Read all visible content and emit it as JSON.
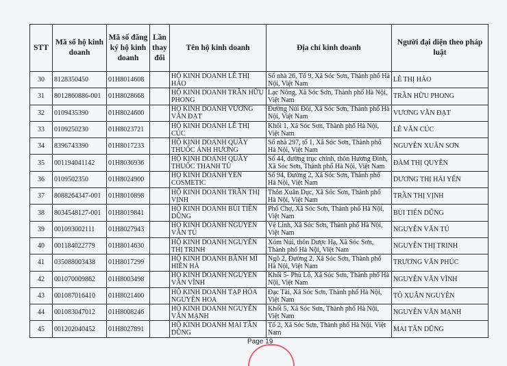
{
  "headers": [
    "STT",
    "Mã số hộ kinh doanh",
    "Mã số đăng ký hộ kinh doanh",
    "Lần thay đổi",
    "Tên hộ kinh doanh",
    "Địa chỉ kinh doanh",
    "Người đại diện theo pháp luật"
  ],
  "rows": [
    {
      "stt": "30",
      "ma_so": "8128350450",
      "ma_dk": "01H8014608",
      "lan": "",
      "ten": "HỘ KINH DOANH LÊ THỊ HẢO",
      "dia_chi": "Số nhà 26, Tổ 9, Xã Sóc Sơn, Thành phố Hà Nội, Việt Nam",
      "dai_dien": "LÊ THỊ HẢO"
    },
    {
      "stt": "31",
      "ma_so": "8012860886-001",
      "ma_dk": "01H8028668",
      "lan": "",
      "ten": "HỘ KINH DOANH TRẦN HỮU PHONG",
      "dia_chi": "Lạc Nông, Xã Sóc Sơn, Thành phố Hà Nội, Việt Nam",
      "dai_dien": "TRẦN HỮU PHONG"
    },
    {
      "stt": "32",
      "ma_so": "0109435390",
      "ma_dk": "01H8024600",
      "lan": "",
      "ten": "HỘ KINH DOANH VƯƠNG VĂN ĐẠT",
      "dia_chi": "Đường Núi Đôi, Xã Sóc Sơn, Thành phố Hà Nội, Việt Nam",
      "dai_dien": "VƯƠNG VĂN ĐẠT"
    },
    {
      "stt": "33",
      "ma_so": "0109250230",
      "ma_dk": "01H8023721",
      "lan": "",
      "ten": "HỘ KINH DOANH LÊ THỊ CÚC",
      "dia_chi": "Khối 1, Xã Sóc Sơn, Thành phố Hà Nội, Việt Nam",
      "dai_dien": "LÊ VĂN CÚC"
    },
    {
      "stt": "34",
      "ma_so": "8396743390",
      "ma_dk": "01H8017233",
      "lan": "",
      "ten": "HỘ KINH DOANH QUẦY THUỐC ÁNH HƯƠNG",
      "dia_chi": "Số nhà 297, tổ 1, Xã Sóc Sơn, Thành phố Hà Nội, Việt Nam",
      "dai_dien": "NGUYỄN XUÂN SƠN"
    },
    {
      "stt": "35",
      "ma_so": "001194041142",
      "ma_dk": "01H8036936",
      "lan": "",
      "ten": "HỘ KINH DOANH QUẦY THUỐC THANH TÚ",
      "dia_chi": "Số 44, đường trục chính, thôn Hương Đình, Xã Sóc Sơn, Thành phố Hà Nội, Việt Nam",
      "dai_dien": "ĐÀM THỊ QUYÊN"
    },
    {
      "stt": "36",
      "ma_so": "0109502350",
      "ma_dk": "01H8024900",
      "lan": "",
      "ten": "HỘ KINH DOANH YẾN COSMETIC",
      "dia_chi": "Số 94, Đường 2, Xã Sóc Sơn, Thành phố Hà Nội, Việt Nam",
      "dai_dien": "DƯƠNG THỊ HẢI YẾN"
    },
    {
      "stt": "37",
      "ma_so": "8088264347-001",
      "ma_dk": "01H8010898",
      "lan": "",
      "ten": "HỘ KINH DOANH TRẦN THỊ VỊNH",
      "dia_chi": "Thôn Xuân Dục, Xã Sóc Sơn, Thành phố Hà Nội, Việt Nam",
      "dai_dien": "TRẦN THỊ VỊNH"
    },
    {
      "stt": "38",
      "ma_so": "8034548127-001",
      "ma_dk": "01H8019841",
      "lan": "",
      "ten": "HỘ KINH DOANH BÙI TIẾN DŨNG",
      "dia_chi": "Phố Chợ, Xã Sóc Sơn, Thành phố Hà Nội, Việt Nam",
      "dai_dien": "BÙI TIẾN DŨNG"
    },
    {
      "stt": "39",
      "ma_so": "001093002111",
      "ma_dk": "01H8027943",
      "lan": "",
      "ten": "HỘ KINH DOANH NGUYỄN VĂN TÚ",
      "dia_chi": "Vệ Linh, Xã Sóc Sơn, Thành phố Hà Nội, Việt Nam",
      "dai_dien": "NGUYỄN VĂN TÚ"
    },
    {
      "stt": "40",
      "ma_so": "001184022779",
      "ma_dk": "01H8014630",
      "lan": "",
      "ten": "HỘ KINH DOANH NGUYỄN THỊ TRINH",
      "dia_chi": "Xóm Núi, thôn Dược Hạ, Xã Sóc Sơn, Thành phố Hà Nội, Việt Nam",
      "dai_dien": "NGUYỄN THỊ TRINH"
    },
    {
      "stt": "41",
      "ma_so": "035088003438",
      "ma_dk": "01H8017299",
      "lan": "",
      "ten": "HỘ KINH DOANH BÁNH MÌ HIỀN HÀ",
      "dia_chi": "Ngõ 2, Đường 2, Xã Sóc Sơn, Thành phố Hà Nội, Việt Nam",
      "dai_dien": "TRƯƠNG VĂN PHÚC"
    },
    {
      "stt": "42",
      "ma_so": "001070009862",
      "ma_dk": "01H8003498",
      "lan": "",
      "ten": "HỘ KINH DOANH NGUYỄN VĂN VĨNH",
      "dia_chi": "Khối 5- Phù Lỗ, Xã Sóc Sơn, Thành phố Hà Nội, Việt Nam",
      "dai_dien": "NGUYỄN VĂN VĨNH"
    },
    {
      "stt": "43",
      "ma_so": "001087016410",
      "ma_dk": "01H8021400",
      "lan": "",
      "ten": "HỘ KINH DOANH TẠP HÓA NGUYÊN HOA",
      "dia_chi": "Đạc Tài, Xã Sóc Sơn, Thành phố Hà Nội, Việt Nam",
      "dai_dien": "TÔ XUÂN NGUYÊN"
    },
    {
      "stt": "44",
      "ma_so": "001083047012",
      "ma_dk": "01H8008246",
      "lan": "",
      "ten": "HỘ KINH DOANH NGUYỄN VĂN MẠNH",
      "dia_chi": "Khối 5, Xã Sóc Sơn, Thành phố Hà Nội, Việt Nam",
      "dai_dien": "NGUYỄN VĂN MẠNH"
    },
    {
      "stt": "45",
      "ma_so": "001202040452",
      "ma_dk": "01H8027891",
      "lan": "",
      "ten": "HỘ KINH DOANH MAI TẤN DŨNG",
      "dia_chi": "Tổ 2, Xã Sóc Sơn, Thành phố Hà Nội, Việt Nam",
      "dai_dien": "MAI TẤN DŨNG"
    }
  ],
  "footer": {
    "page_label": "Page 19"
  },
  "colors": {
    "stamp": "#d8404a",
    "paper": "#f3f5f7"
  }
}
